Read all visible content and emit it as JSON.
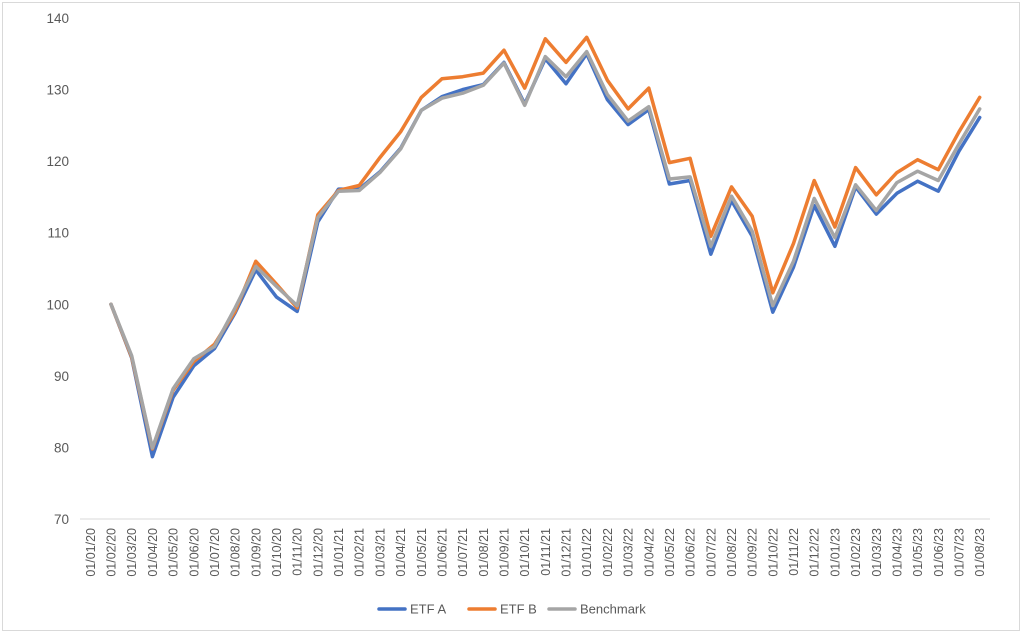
{
  "chart_data": {
    "type": "line",
    "title": "",
    "xlabel": "",
    "ylabel": "",
    "ylim": [
      70,
      140
    ],
    "y_ticks": [
      70,
      80,
      90,
      100,
      110,
      120,
      130,
      140
    ],
    "grid": false,
    "legend_position": "bottom",
    "categories": [
      "01/01/20",
      "01/02/20",
      "01/03/20",
      "01/04/20",
      "01/05/20",
      "01/06/20",
      "01/07/20",
      "01/08/20",
      "01/09/20",
      "01/10/20",
      "01/11/20",
      "01/12/20",
      "01/01/21",
      "01/02/21",
      "01/03/21",
      "01/04/21",
      "01/05/21",
      "01/06/21",
      "01/07/21",
      "01/08/21",
      "01/09/21",
      "01/10/21",
      "01/11/21",
      "01/12/21",
      "01/01/22",
      "01/02/22",
      "01/03/22",
      "01/04/22",
      "01/05/22",
      "01/06/22",
      "01/07/22",
      "01/08/22",
      "01/09/22",
      "01/10/22",
      "01/11/22",
      "01/12/22",
      "01/01/23",
      "01/02/23",
      "01/03/23",
      "01/04/23",
      "01/05/23",
      "01/06/23",
      "01/07/23",
      "01/08/23"
    ],
    "series": [
      {
        "name": "ETF A",
        "color": "#4472c4",
        "values": [
          null,
          100,
          92.5,
          78.7,
          87,
          91.4,
          93.8,
          98.8,
          104.8,
          101,
          99,
          111.5,
          116.1,
          116.1,
          118.5,
          121.8,
          127.1,
          129,
          130,
          130.7,
          133.8,
          128,
          134.3,
          130.8,
          135,
          128.6,
          125.1,
          127.2,
          116.8,
          117.3,
          107,
          114.5,
          109.5,
          98.9,
          105.2,
          113.8,
          108.1,
          116.4,
          112.6,
          115.5,
          117.2,
          115.8,
          121.4,
          126.1
        ]
      },
      {
        "name": "ETF B",
        "color": "#ed7d31",
        "values": [
          null,
          100,
          92.6,
          79.8,
          88,
          92,
          94.4,
          99,
          106,
          102.8,
          99.5,
          112.5,
          115.9,
          116.6,
          120.5,
          124.1,
          128.9,
          131.5,
          131.8,
          132.3,
          135.5,
          130.2,
          137.1,
          133.8,
          137.3,
          131.3,
          127.3,
          130.2,
          119.8,
          120.4,
          109.5,
          116.4,
          112.3,
          101.6,
          108.5,
          117.3,
          110.8,
          119.1,
          115.3,
          118.4,
          120.2,
          118.8,
          124.1,
          128.9
        ]
      },
      {
        "name": "Benchmark",
        "color": "#a5a5a5",
        "values": [
          null,
          100,
          92.8,
          79.9,
          88.2,
          92.4,
          94.1,
          99.5,
          105.3,
          102.5,
          99.8,
          112.1,
          115.8,
          115.9,
          118.4,
          121.7,
          127.1,
          128.8,
          129.5,
          130.6,
          133.7,
          127.8,
          134.6,
          131.8,
          135.3,
          129.3,
          125.6,
          127.6,
          117.5,
          117.8,
          108.1,
          115.1,
          110.2,
          99.8,
          106,
          114.8,
          109.3,
          116.7,
          113.1,
          117,
          118.6,
          117.3,
          122.4,
          127.3
        ]
      }
    ]
  }
}
